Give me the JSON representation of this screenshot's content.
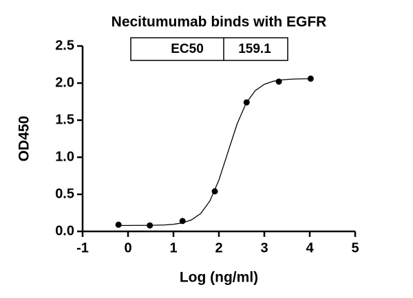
{
  "chart_data": {
    "type": "scatter",
    "title": "Necitumumab binds with EGFR",
    "x_label": "Log (ng/ml)",
    "y_label": "OD450",
    "annotation_table": {
      "label": "EC50",
      "value": 159.1
    },
    "xlim": [
      -1,
      5
    ],
    "xticks": [
      -1,
      0,
      1,
      2,
      3,
      4,
      5
    ],
    "ylim": [
      0,
      2.5
    ],
    "yticks": [
      {
        "value": 0,
        "label": "0.0"
      },
      0.5,
      {
        "value": 1,
        "label": "1.0"
      },
      1.5,
      {
        "value": 2,
        "label": "2.0"
      },
      2.5
    ],
    "series": [
      {
        "type": "scatter",
        "color": "#000000",
        "x": [
          -0.21,
          0.48,
          1.2,
          1.91,
          2.61,
          3.32,
          4.02
        ],
        "values": [
          0.09,
          0.08,
          0.14,
          0.54,
          1.74,
          2.02,
          2.06
        ]
      },
      {
        "type": "line",
        "color": "#000000",
        "x": [
          -0.2,
          0,
          0.2,
          0.4,
          0.6,
          0.8,
          1,
          1.2,
          1.4,
          1.6,
          1.8,
          2,
          2.2,
          2.4,
          2.6,
          2.8,
          3,
          3.2,
          3.4,
          3.6,
          3.8,
          4
        ],
        "values": [
          0.08,
          0.08,
          0.081,
          0.081,
          0.083,
          0.087,
          0.096,
          0.115,
          0.156,
          0.242,
          0.409,
          0.691,
          1.07,
          1.448,
          1.73,
          1.898,
          1.984,
          2.025,
          2.044,
          2.053,
          2.057,
          2.059
        ]
      }
    ]
  }
}
